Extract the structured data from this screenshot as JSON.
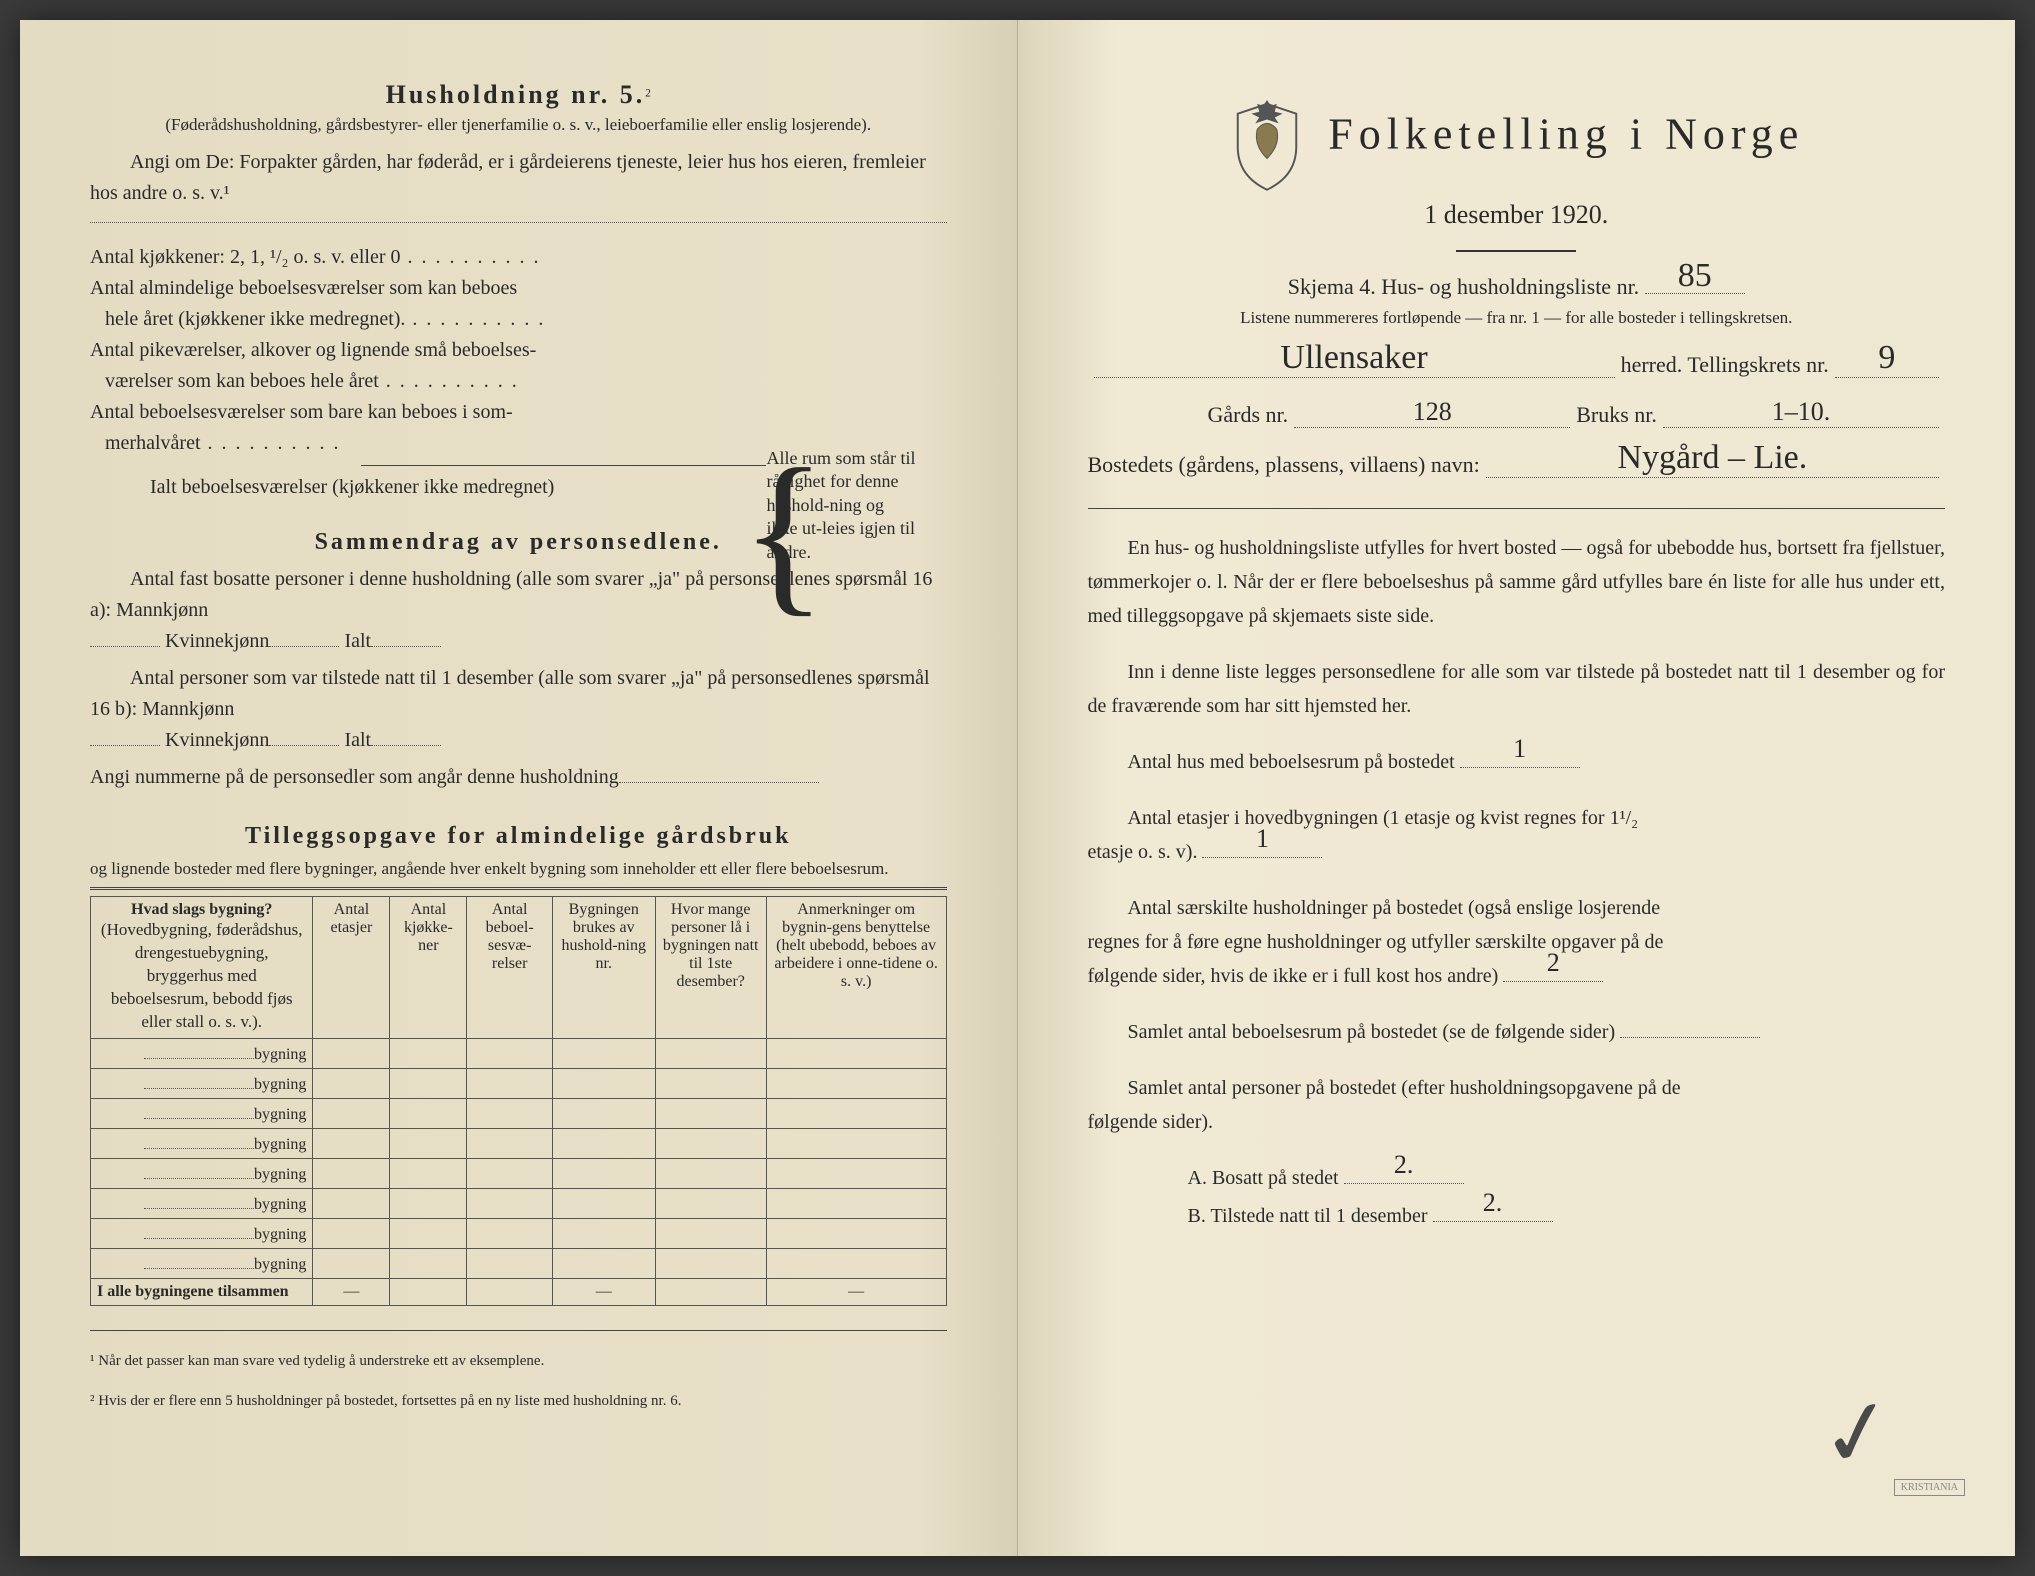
{
  "left": {
    "heading": "Husholdning nr. 5.",
    "heading_sup": "2",
    "sub1": "(Føderådshusholdning, gårdsbestyrer- eller tjenerfamilie o. s. v., leieboerfamilie eller enslig losjerende).",
    "sub2": "Angi om De: Forpakter gården, har føderåd, er i gårdeierens tjeneste, leier hus hos eieren, fremleier hos andre o. s. v.¹",
    "k1": "Antal kjøkkener: 2, 1, ¹/₂ o. s. v. eller 0",
    "k2a": "Antal almindelige beboelsesværelser som kan beboes",
    "k2b": "hele året (kjøkkener ikke medregnet).",
    "k3a": "Antal pikeværelser, alkover og lignende små beboelses-",
    "k3b": "værelser som kan beboes hele året",
    "k4a": "Antal beboelsesværelser som bare kan beboes i som-",
    "k4b": "merhalvåret",
    "k5": "Ialt beboelsesværelser (kjøkkener ikke medregnet)",
    "brace": "Alle rum som står til rådighet for denne hushold-ning og ikke ut-leies igjen til andre.",
    "sammendrag_title": "Sammendrag av personsedlene.",
    "s1": "Antal fast bosatte personer i denne husholdning (alle som svarer „ja\" på personsedlenes spørsmål 16 a): Mannkjønn",
    "s_k": "Kvinnekjønn",
    "s_i": "Ialt",
    "s2": "Antal personer som var tilstede natt til 1 desember (alle som svarer „ja\" på personsedlenes spørsmål 16 b): Mannkjønn",
    "s3": "Angi nummerne på de personsedler som angår denne husholdning",
    "tillegg_title": "Tilleggsopgave for almindelige gårdsbruk",
    "tillegg_sub": "og lignende bosteder med flere bygninger, angående hver enkelt bygning som inneholder ett eller flere beboelsesrum.",
    "table": {
      "h1a": "Hvad slags bygning?",
      "h1b": "(Hovedbygning, føderådshus, drengestuebygning, bryggerhus med beboelsesrum, bebodd fjøs eller stall o. s. v.).",
      "h2": "Antal etasjer",
      "h3": "Antal kjøkke-ner",
      "h4": "Antal beboel-sesvæ-relser",
      "h5": "Bygningen brukes av hushold-ning nr.",
      "h6": "Hvor mange personer lå i bygningen natt til 1ste desember?",
      "h7": "Anmerkninger om bygnin-gens benyttelse (helt ubebodd, beboes av arbeidere i onne-tidene o. s. v.)",
      "rowlabel": "bygning",
      "totals": "I alle bygningene tilsammen"
    },
    "foot1": "¹ Når det passer kan man svare ved tydelig å understreke ett av eksemplene.",
    "foot2": "² Hvis der er flere enn 5 husholdninger på bostedet, fortsettes på en ny liste med husholdning nr. 6."
  },
  "right": {
    "title": "Folketelling i Norge",
    "date": "1 desember 1920.",
    "schema": "Skjema 4.  Hus- og husholdningsliste nr.",
    "schema_nr": "85",
    "schema_nr_orig": "5",
    "subline": "Listene nummereres fortløpende — fra nr. 1 — for alle bosteder i tellingskretsen.",
    "herred_val": "Ullensaker",
    "herred_lbl": "herred.   Tellingskrets nr.",
    "krets_nr": "9",
    "gard_lbl": "Gårds nr.",
    "gard_nr": "128",
    "bruk_lbl": "Bruks nr.",
    "bruk_nr": "1–10.",
    "bosted_lbl": "Bostedets (gårdens, plassens, villaens) navn:",
    "bosted_val": "Nygård – Lie.",
    "p1": "En hus- og husholdningsliste utfylles for hvert bosted — også for ubebodde hus, bortsett fra fjellstuer, tømmerkojer o. l.  Når der er flere beboelseshus på samme gård utfylles bare én liste for alle hus under ett, med tilleggsopgave på skjemaets siste side.",
    "p2": "Inn i denne liste legges personsedlene for alle som var tilstede på bostedet natt til 1 desember og for de fraværende som har sitt hjemsted her.",
    "q1": "Antal hus med beboelsesrum på bostedet",
    "q1v": "1",
    "q2a": "Antal etasjer i hovedbygningen (1 etasje og kvist regnes for 1¹/₂",
    "q2b": "etasje o. s. v).",
    "q2v": "1",
    "q3a": "Antal særskilte husholdninger på bostedet (også enslige losjerende",
    "q3b": "regnes for å føre egne husholdninger og utfyller særskilte opgaver på de",
    "q3c": "følgende sider, hvis de ikke er i full kost hos andre)",
    "q3v": "2",
    "q4": "Samlet antal beboelsesrum på bostedet (se de følgende sider)",
    "q5a": "Samlet antal personer på bostedet (efter husholdningsopgavene på de",
    "q5b": "følgende sider).",
    "qA": "A.   Bosatt på stedet",
    "qAv": "2.",
    "qB": "B.   Tilstede natt til 1 desember",
    "qBv": "2."
  },
  "colors": {
    "paper": "#e8e0c8",
    "ink": "#2a2a2a",
    "pen": "#3a3a3a"
  }
}
